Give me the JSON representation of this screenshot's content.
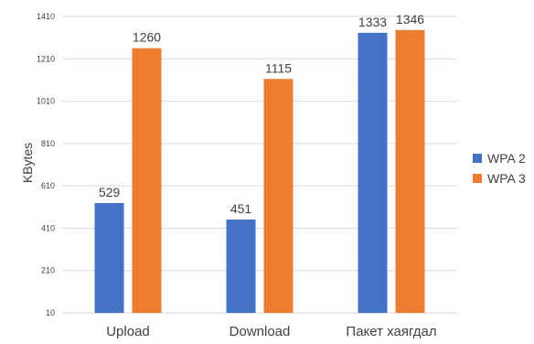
{
  "chart_data": {
    "type": "bar",
    "categories": [
      "Upload",
      "Download",
      "Пакет хаягдал"
    ],
    "series": [
      {
        "name": "WPA 2",
        "values": [
          529,
          451,
          1333
        ],
        "color": "#4472C4"
      },
      {
        "name": "WPA 3",
        "values": [
          1260,
          1115,
          1346
        ],
        "color": "#ED7D31"
      }
    ],
    "ylabel": "KBytes",
    "ylim": [
      10,
      1410
    ],
    "yticks": [
      "10",
      "210",
      "410",
      "610",
      "810",
      "1010",
      "1210",
      "1410"
    ],
    "grid": true,
    "legend": "right"
  }
}
